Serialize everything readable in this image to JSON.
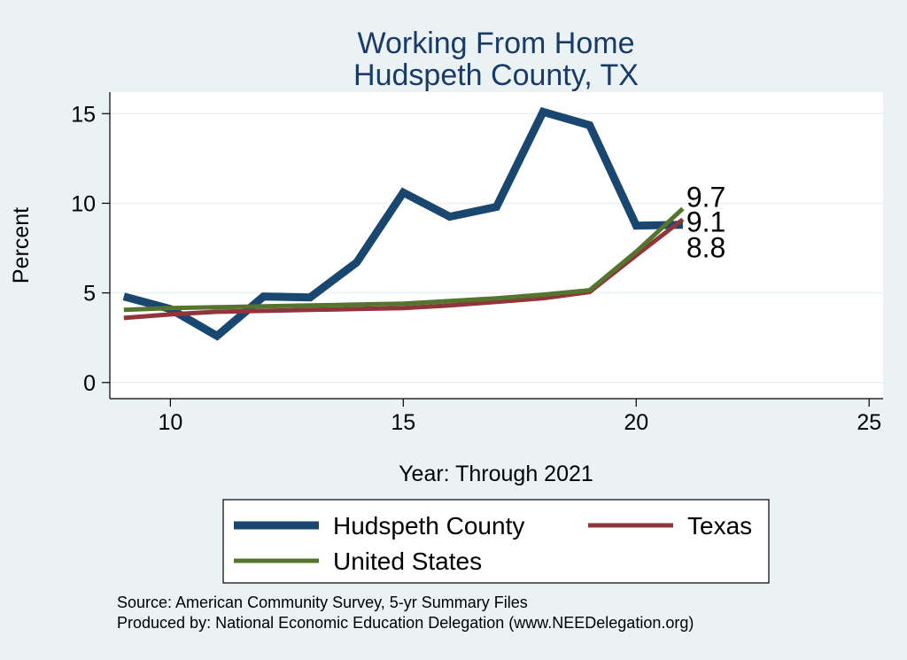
{
  "chart_data": {
    "type": "line",
    "title": [
      "Working From Home",
      "Hudspeth County, TX"
    ],
    "xlabel": "Year: Through 2021",
    "ylabel": "Percent",
    "xlim": [
      8.7,
      25.3
    ],
    "ylim": [
      -0.9,
      16.2
    ],
    "xticks": [
      10,
      15,
      20,
      25
    ],
    "yticks": [
      0,
      5,
      10,
      15
    ],
    "grid": "horizontal",
    "series": [
      {
        "name": "Hudspeth County",
        "color": "#1a476f",
        "x": [
          9,
          10,
          11,
          12,
          13,
          14,
          15,
          16,
          17,
          18,
          19,
          20,
          21
        ],
        "values": [
          4.8,
          4.1,
          2.6,
          4.8,
          4.75,
          6.7,
          10.6,
          9.25,
          9.8,
          15.1,
          14.35,
          8.75,
          8.8
        ],
        "end_label": "8.8"
      },
      {
        "name": "Texas",
        "color": "#90353b",
        "x": [
          9,
          10,
          11,
          12,
          13,
          14,
          15,
          16,
          17,
          18,
          19,
          20,
          21
        ],
        "values": [
          3.6,
          3.8,
          3.95,
          4.0,
          4.05,
          4.1,
          4.15,
          4.3,
          4.5,
          4.7,
          5.05,
          7.1,
          9.1
        ],
        "end_label": "9.1"
      },
      {
        "name": "United States",
        "color": "#55752f",
        "x": [
          9,
          10,
          11,
          12,
          13,
          14,
          15,
          16,
          17,
          18,
          19,
          20,
          21
        ],
        "values": [
          4.05,
          4.15,
          4.2,
          4.25,
          4.3,
          4.35,
          4.4,
          4.55,
          4.7,
          4.9,
          5.15,
          7.3,
          9.7
        ],
        "end_label": "9.7"
      }
    ],
    "legend": {
      "position": "bottom",
      "entries": [
        "Hudspeth County",
        "Texas",
        "United States"
      ]
    }
  },
  "notes": {
    "source": "Source: American Community Survey, 5-yr Summary Files",
    "produced": "Produced by: National Economic Education Delegation (www.NEEDelegation.org)"
  }
}
